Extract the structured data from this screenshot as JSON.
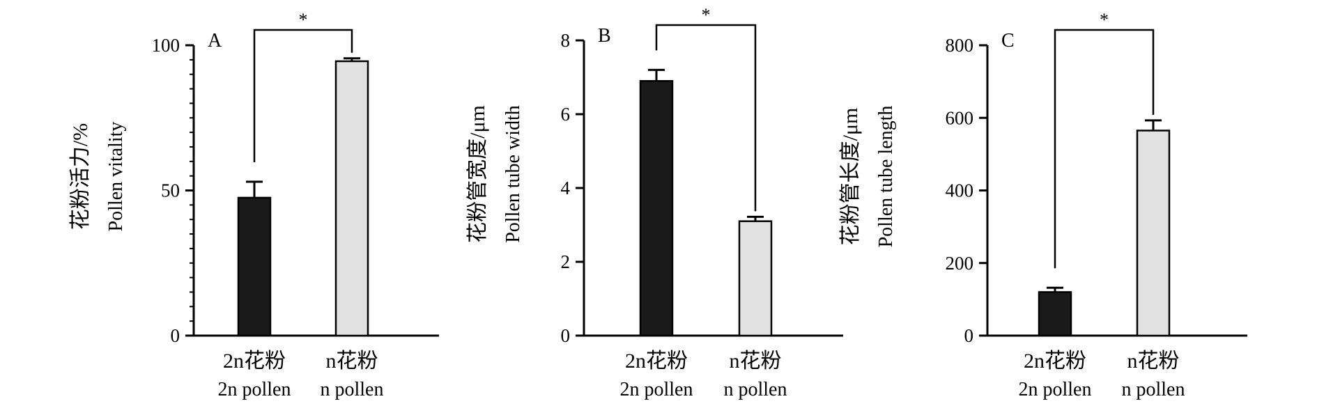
{
  "colors": {
    "dark_bar": "#1a1a1a",
    "light_bar": "#e2e2e2",
    "axis": "#000000"
  },
  "chart_data": [
    {
      "type": "bar",
      "panel_label": "A",
      "ylabel_cn": "花粉活力/%",
      "ylabel_en": "Pollen vitality",
      "categories": [
        {
          "cn": "2n花粉",
          "en": "2n pollen"
        },
        {
          "cn": "n花粉",
          "en": "n pollen"
        }
      ],
      "values": [
        47.5,
        94.5
      ],
      "errors": [
        5.5,
        1.0
      ],
      "ylim": [
        0,
        100
      ],
      "yticks": [
        "0",
        "50",
        "100"
      ],
      "significance": "*"
    },
    {
      "type": "bar",
      "panel_label": "B",
      "ylabel_cn": "花粉管宽度/μm",
      "ylabel_en": "Pollen tube width",
      "categories": [
        {
          "cn": "2n花粉",
          "en": "2n pollen"
        },
        {
          "cn": "n花粉",
          "en": "n pollen"
        }
      ],
      "values": [
        6.9,
        3.1
      ],
      "errors": [
        0.3,
        0.12
      ],
      "ylim": [
        0,
        8
      ],
      "yticks": [
        "0",
        "2",
        "4",
        "6",
        "8"
      ],
      "significance": "*"
    },
    {
      "type": "bar",
      "panel_label": "C",
      "ylabel_cn": "花粉管长度/μm",
      "ylabel_en": "Pollen tube length",
      "categories": [
        {
          "cn": "2n花粉",
          "en": "2n pollen"
        },
        {
          "cn": "n花粉",
          "en": "n pollen"
        }
      ],
      "values": [
        120,
        565
      ],
      "errors": [
        12,
        28
      ],
      "ylim": [
        0,
        800
      ],
      "yticks": [
        "0",
        "200",
        "400",
        "600",
        "800"
      ],
      "significance": "*"
    }
  ]
}
